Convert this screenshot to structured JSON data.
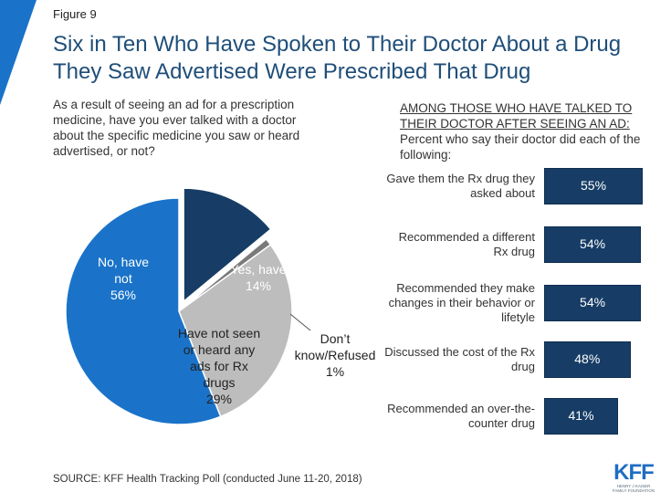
{
  "figure_label": "Figure 9",
  "title": "Six in Ten Who Have Spoken to Their Doctor About a Drug They Saw Advertised Were Prescribed That Drug",
  "question": "As a result of seeing an ad for a prescription medicine, have you ever talked with a doctor about the specific medicine you saw or heard advertised, or not?",
  "right_heading_line1": "AMONG THOSE WHO HAVE TALKED TO",
  "right_heading_line2": "THEIR DOCTOR AFTER SEEING AN AD:",
  "right_subheading": "Percent who say their doctor did each of the following:",
  "source": "SOURCE: KFF Health Tracking Poll (conducted June 11-20, 2018)",
  "logo": {
    "text": "KFF",
    "subtext_1": "HENRY J KAISER",
    "subtext_2": "FAMILY FOUNDATION"
  },
  "colors": {
    "title": "#1f4e79",
    "pie_no": "#1a73c9",
    "pie_yes": "#173d66",
    "pie_not_seen": "#bdbdbd",
    "pie_dk": "#7a7a7a",
    "bars": "#173d66",
    "accent": "#1a73c9"
  },
  "chart_data": [
    {
      "type": "pie",
      "slices": [
        {
          "label": "Yes, have",
          "value": 14,
          "display": "14%"
        },
        {
          "label": "Don't know/Refused",
          "value": 1,
          "display": "1%"
        },
        {
          "label": "Have not seen or heard any ads for Rx drugs",
          "value": 29,
          "display": "29%"
        },
        {
          "label": "No, have not",
          "value": 56,
          "display": "56%"
        }
      ]
    },
    {
      "type": "bar",
      "orientation": "horizontal",
      "categories": [
        "Gave them the Rx drug they asked about",
        "Recommended a different Rx drug",
        "Recommended they make changes in their behavior or lifetyle",
        "Discussed the cost of the Rx drug",
        "Recommended an over-the-counter drug"
      ],
      "values": [
        55,
        54,
        54,
        48,
        41
      ],
      "value_labels": [
        "55%",
        "54%",
        "54%",
        "48%",
        "41%"
      ]
    }
  ]
}
